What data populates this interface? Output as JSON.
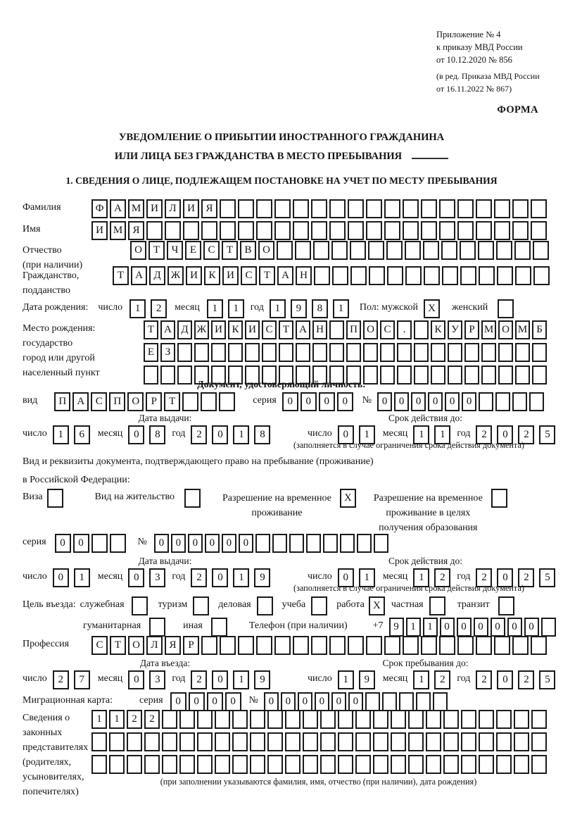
{
  "doc": {
    "annex": [
      "Приложение № 4",
      "к приказу МВД России",
      "от 10.12.2020 № 856"
    ],
    "annex_amend": [
      "(в ред. Приказа МВД России",
      "от 16.11.2022 № 867)"
    ],
    "forma": "ФОРМА",
    "title_line1": "УВЕДОМЛЕНИЕ О ПРИБЫТИИ ИНОСТРАННОГО ГРАЖДАНИНА",
    "title_line2": "ИЛИ ЛИЦА БЕЗ ГРАЖДАНСТВА В МЕСТО ПРЕБЫВАНИЯ",
    "section1_heading": "1. СВЕДЕНИЯ О ЛИЦЕ, ПОДЛЕЖАЩЕМ ПОСТАНОВКЕ НА УЧЕТ ПО МЕСТУ ПРЕБЫВАНИЯ"
  },
  "labels": {
    "surname": "Фамилия",
    "name": "Имя",
    "patronymic": "Отчество",
    "patronymic_note": "(при наличии)",
    "citizenship1": "Гражданство,",
    "citizenship2": "подданство",
    "birth_date": "Дата рождения:",
    "day": "число",
    "month": "месяц",
    "year": "год",
    "sex_male": "Пол: мужской",
    "sex_female": "женский",
    "birthplace1": "Место рождения:",
    "birthplace2": "государство",
    "birthplace3": "город или другой",
    "birthplace4": "населенный пункт",
    "identity_doc_heading": "Документ, удостоверяющий личность:",
    "kind": "вид",
    "series": "серия",
    "number": "№",
    "issue_date": "Дата выдачи:",
    "valid_until": "Срок действия до:",
    "valid_note": "(заполняется в случае ограничения срока действия документа)",
    "residence_doc1": "Вид и реквизиты документа, подтверждающего право на пребывание (проживание)",
    "residence_doc2": "в Российской Федерации:",
    "visa": "Виза",
    "residence_permit": "Вид на жительство",
    "temp_permit1": "Разрешение на временное",
    "temp_permit2": "проживание",
    "temp_edu1": "Разрешение на временное",
    "temp_edu2": "проживание в целях",
    "temp_edu3": "получения образования",
    "purpose_lead": "Цель въезда:",
    "p_official": "служебная",
    "p_tourism": "туризм",
    "p_business": "деловая",
    "p_study": "учеба",
    "p_work": "работа",
    "p_private": "частная",
    "p_transit": "транзит",
    "p_humanitarian": "гуманитарная",
    "p_other": "иная",
    "phone": "Телефон (при наличии)",
    "phone_prefix": "+7",
    "profession": "Профессия",
    "entry_date": "Дата въезда:",
    "stay_until": "Срок пребывания до:",
    "migration_card": "Миграционная карта:",
    "legal1": "Сведения о",
    "legal2": "законных",
    "legal3": "представителях",
    "legal4": "(родителях,",
    "legal5": "усыновителях,",
    "legal6": "попечителях)",
    "legal_note": "(при заполнении указываются фамилия, имя, отчество (при наличии), дата рождения)"
  },
  "fields": {
    "surname": {
      "v": "ФАМИЛИЯ",
      "n": 25
    },
    "name": {
      "v": "ИМЯ",
      "n": 25
    },
    "patronymic": {
      "v": "ОТЧЕСТВО",
      "n": 23
    },
    "citizenship": {
      "v": "ТАДЖИКИСТАН",
      "n": 24
    },
    "birth_day": {
      "v": "12",
      "n": 2
    },
    "birth_month": {
      "v": "11",
      "n": 2
    },
    "birth_year": {
      "v": "1981",
      "n": 4
    },
    "sex_male": {
      "v": "X",
      "n": 1
    },
    "sex_female": {
      "v": "",
      "n": 1
    },
    "birthplace_row1": {
      "v": "ТАДЖИКИСТАН ПОС. КУРМОМБ",
      "n": 24
    },
    "birthplace_row2": {
      "v": "ЕЗ",
      "n": 24
    },
    "birthplace_row3": {
      "v": "",
      "n": 24
    },
    "doc_kind": {
      "v": "ПАСПОРТ",
      "n": 10
    },
    "doc_series": {
      "v": "0000",
      "n": 4
    },
    "doc_number": {
      "v": "000000",
      "n": 10
    },
    "doc_issue_day": {
      "v": "16",
      "n": 2
    },
    "doc_issue_month": {
      "v": "08",
      "n": 2
    },
    "doc_issue_year": {
      "v": "2018",
      "n": 4
    },
    "doc_valid_day": {
      "v": "01",
      "n": 2
    },
    "doc_valid_month": {
      "v": "11",
      "n": 2
    },
    "doc_valid_year": {
      "v": "2025",
      "n": 4
    },
    "visa_cb": {
      "v": "",
      "n": 1
    },
    "residence_permit_cb": {
      "v": "",
      "n": 1
    },
    "temp_permit_cb": {
      "v": "X",
      "n": 1
    },
    "temp_edu_cb": {
      "v": "",
      "n": 1
    },
    "res_series": {
      "v": "00",
      "n": 4
    },
    "res_number": {
      "v": "000000",
      "n": 14
    },
    "res_issue_day": {
      "v": "01",
      "n": 2
    },
    "res_issue_month": {
      "v": "03",
      "n": 2
    },
    "res_issue_year": {
      "v": "2019",
      "n": 4
    },
    "res_valid_day": {
      "v": "01",
      "n": 2
    },
    "res_valid_month": {
      "v": "12",
      "n": 2
    },
    "res_valid_year": {
      "v": "2025",
      "n": 4
    },
    "purpose_official": {
      "v": "",
      "n": 1
    },
    "purpose_tourism": {
      "v": "",
      "n": 1
    },
    "purpose_business": {
      "v": "",
      "n": 1
    },
    "purpose_study": {
      "v": "",
      "n": 1
    },
    "purpose_work": {
      "v": "X",
      "n": 1
    },
    "purpose_private": {
      "v": "",
      "n": 1
    },
    "purpose_transit": {
      "v": "",
      "n": 1
    },
    "purpose_humanitarian": {
      "v": "",
      "n": 1
    },
    "purpose_other": {
      "v": "",
      "n": 1
    },
    "phone": {
      "v": "911000000",
      "n": 10
    },
    "profession": {
      "v": "СТОЛЯР",
      "n": 25
    },
    "entry_day": {
      "v": "27",
      "n": 2
    },
    "entry_month": {
      "v": "03",
      "n": 2
    },
    "entry_year": {
      "v": "2019",
      "n": 4
    },
    "stay_day": {
      "v": "19",
      "n": 2
    },
    "stay_month": {
      "v": "12",
      "n": 2
    },
    "stay_year": {
      "v": "2025",
      "n": 4
    },
    "mig_series": {
      "v": "0000",
      "n": 4
    },
    "mig_number": {
      "v": "000000",
      "n": 11
    },
    "legal_row1": {
      "v": "1122",
      "n": 26
    },
    "legal_row2": {
      "v": "",
      "n": 26
    },
    "legal_row3": {
      "v": "",
      "n": 26
    }
  }
}
